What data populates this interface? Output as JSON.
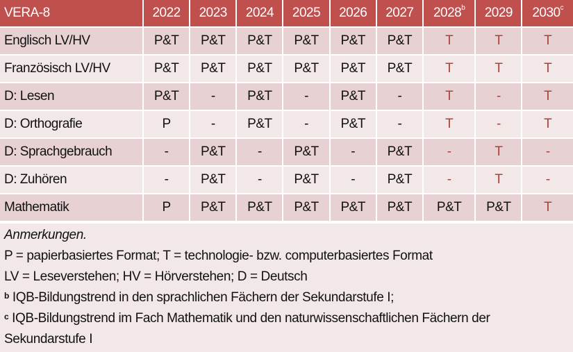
{
  "colors": {
    "header_bg": "#C0504D",
    "row_dark": "#E8D1D2",
    "row_light": "#F3E8E8",
    "accent_text": "#A9403D"
  },
  "table": {
    "header": {
      "label": "VERA-8",
      "years": [
        {
          "year": "2022",
          "sup": ""
        },
        {
          "year": "2023",
          "sup": ""
        },
        {
          "year": "2024",
          "sup": ""
        },
        {
          "year": "2025",
          "sup": ""
        },
        {
          "year": "2026",
          "sup": ""
        },
        {
          "year": "2027",
          "sup": ""
        },
        {
          "year": "2028",
          "sup": "b"
        },
        {
          "year": "2029",
          "sup": ""
        },
        {
          "year": "2030",
          "sup": "c"
        }
      ]
    },
    "rows": [
      {
        "subject": "Englisch LV/HV",
        "values": [
          "P&T",
          "P&T",
          "P&T",
          "P&T",
          "P&T",
          "P&T",
          "T",
          "T",
          "T"
        ]
      },
      {
        "subject": "Französisch LV/HV",
        "values": [
          "P&T",
          "P&T",
          "P&T",
          "P&T",
          "P&T",
          "P&T",
          "T",
          "T",
          "T"
        ]
      },
      {
        "subject": "D: Lesen",
        "values": [
          "P&T",
          "-",
          "P&T",
          "-",
          "P&T",
          "-",
          "T",
          "-",
          "T"
        ]
      },
      {
        "subject": "D: Orthografie",
        "values": [
          "P",
          "-",
          "P&T",
          "-",
          "P&T",
          "-",
          "T",
          "-",
          "T"
        ]
      },
      {
        "subject": "D: Sprachgebrauch",
        "values": [
          "-",
          "P&T",
          "-",
          "P&T",
          "-",
          "P&T",
          "-",
          "T",
          "-"
        ]
      },
      {
        "subject": "D: Zuhören",
        "values": [
          "-",
          "P&T",
          "-",
          "P&T",
          "-",
          "P&T",
          "-",
          "T",
          "-"
        ]
      },
      {
        "subject": "Mathematik",
        "values": [
          "P",
          "P&T",
          "P&T",
          "P&T",
          "P&T",
          "P&T",
          "P&T",
          "P&T",
          "T"
        ]
      }
    ]
  },
  "notes": {
    "heading": "Anmerkungen.",
    "line1": "P = papierbasiertes Format; T = technologie- bzw. computerbasiertes Format",
    "line2": "LV = Leseverstehen; HV = Hörverstehen; D = Deutsch",
    "footnote_b_mark": "b",
    "footnote_b": " IQB-Bildungstrend in den sprachlichen Fächern der Sekundarstufe I;",
    "footnote_c_mark": "c",
    "footnote_c": " IQB-Bildungstrend im Fach Mathematik und den naturwissenschaftlichen Fächern der Sekundarstufe I"
  }
}
